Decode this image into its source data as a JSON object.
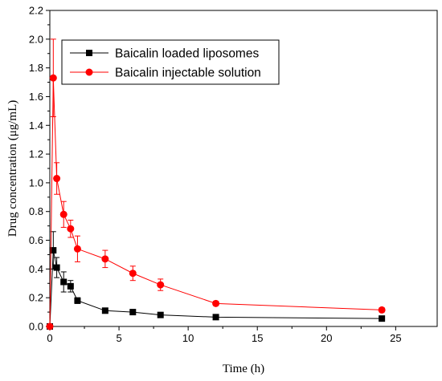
{
  "chart_data": {
    "type": "line",
    "xlabel": "Time (h)",
    "ylabel": "Drug concentration (μg/mL)",
    "xlim": [
      0,
      28
    ],
    "ylim": [
      0,
      2.2
    ],
    "xticks": [
      0,
      5,
      10,
      15,
      20,
      25
    ],
    "yticks": [
      0.0,
      0.2,
      0.4,
      0.6,
      0.8,
      1.0,
      1.2,
      1.4,
      1.6,
      1.8,
      2.0,
      2.2
    ],
    "xtick_labels": [
      "0",
      "5",
      "10",
      "15",
      "20",
      "25"
    ],
    "ytick_labels": [
      "0.0",
      "0.2",
      "0.4",
      "0.6",
      "0.8",
      "1.0",
      "1.2",
      "1.4",
      "1.6",
      "1.8",
      "2.0",
      "2.2"
    ],
    "legend_position": "top-center",
    "grid": false,
    "series": [
      {
        "name": "Baicalin loaded liposomes",
        "color": "#000000",
        "marker": "square",
        "x": [
          0,
          0.25,
          0.5,
          1,
          1.5,
          2,
          4,
          6,
          8,
          12,
          24
        ],
        "y": [
          0.0,
          0.53,
          0.41,
          0.31,
          0.28,
          0.18,
          0.11,
          0.1,
          0.08,
          0.065,
          0.055
        ],
        "err": [
          0.0,
          0.13,
          0.07,
          0.07,
          0.04,
          0.02,
          0.01,
          0.01,
          0.01,
          0.005,
          0.005
        ]
      },
      {
        "name": "Baicalin injectable solution",
        "color": "#ff0000",
        "marker": "circle",
        "x": [
          0,
          0.25,
          0.5,
          1,
          1.5,
          2,
          4,
          6,
          8,
          12,
          24
        ],
        "y": [
          0.0,
          1.73,
          1.03,
          0.78,
          0.68,
          0.54,
          0.47,
          0.37,
          0.29,
          0.16,
          0.115
        ],
        "err": [
          0.0,
          0.27,
          0.11,
          0.09,
          0.06,
          0.09,
          0.06,
          0.05,
          0.04,
          0.015,
          0.015
        ]
      }
    ]
  }
}
